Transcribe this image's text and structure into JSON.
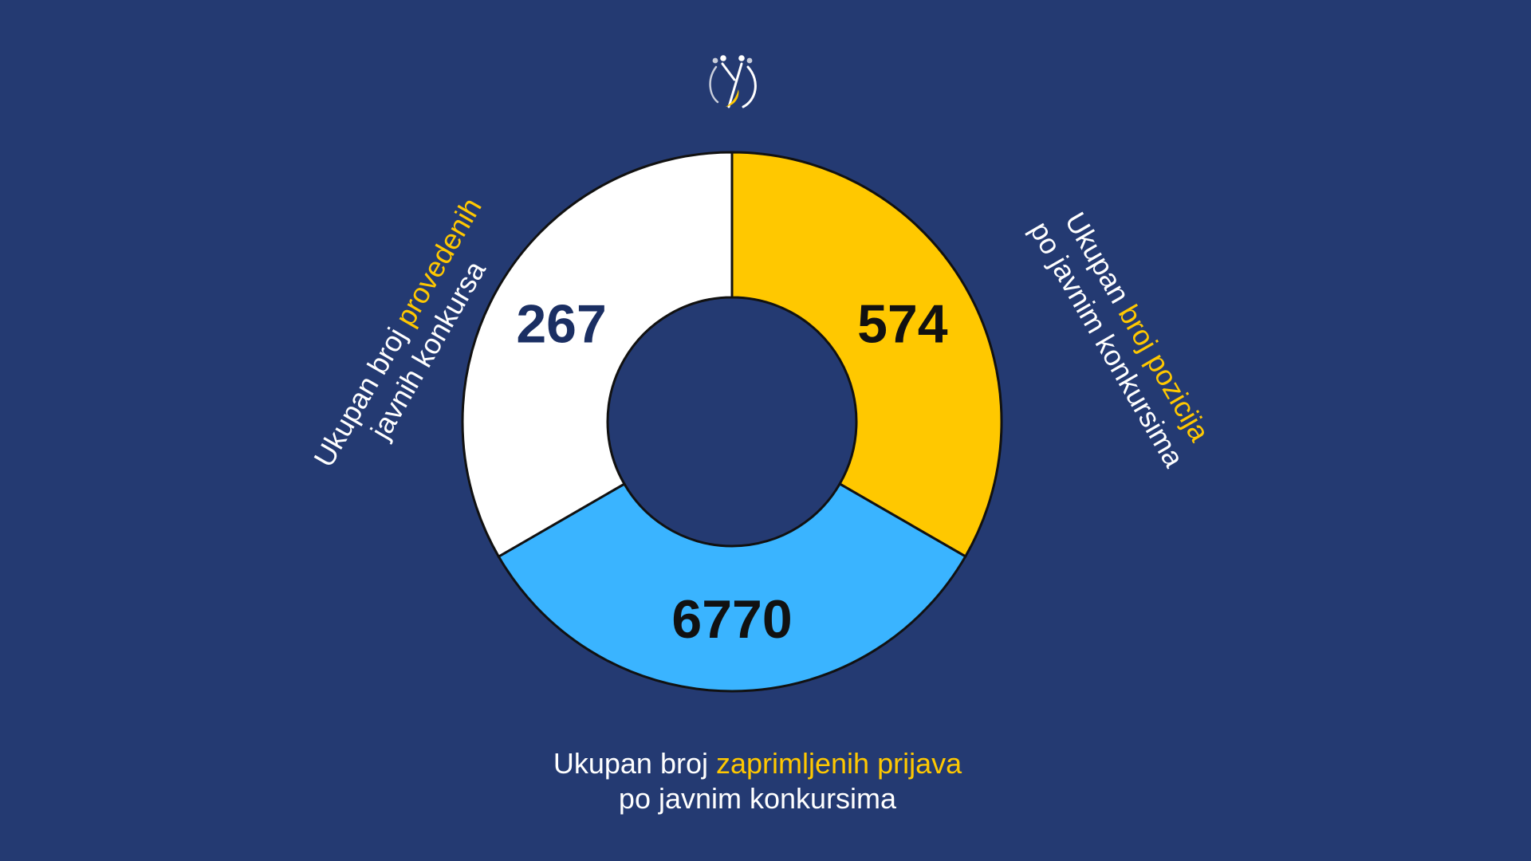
{
  "colors": {
    "background": "#243a72",
    "white_segment": "#ffffff",
    "yellow_segment": "#ffc800",
    "blue_segment": "#3ab4ff",
    "highlight_text": "#ffc800",
    "outline": "#111111"
  },
  "logo": {
    "icon": "institution-logo-icon"
  },
  "labels": {
    "left": {
      "pre": "Ukupan broj ",
      "hl": "provedenih",
      "post": "",
      "line2": "javnih konkursa"
    },
    "right": {
      "pre": "Ukupan ",
      "hl": "broj pozicija",
      "post": "",
      "line2": "po javnim konkursima"
    },
    "bottom": {
      "pre": "Ukupan broj ",
      "hl": "zaprimljenih prijava",
      "post": "",
      "line2": "po javnim konkursima"
    }
  },
  "chart_data": {
    "type": "pie",
    "variant": "donut",
    "title": "",
    "categories": [
      "Ukupan broj pozicija po javnim konkursima",
      "Ukupan broj zaprimljenih prijava po javnim konkursima",
      "Ukupan broj provedenih javnih konkursa"
    ],
    "values": [
      574,
      6770,
      267
    ],
    "slice_fractions": [
      0.3333,
      0.3333,
      0.3334
    ],
    "slice_colors": [
      "#ffc800",
      "#3ab4ff",
      "#ffffff"
    ],
    "value_label_colors": [
      "#111111",
      "#111111",
      "#1b2f63"
    ],
    "value_labels": [
      "574",
      "6770",
      "267"
    ],
    "legend": "none",
    "grid": false
  }
}
